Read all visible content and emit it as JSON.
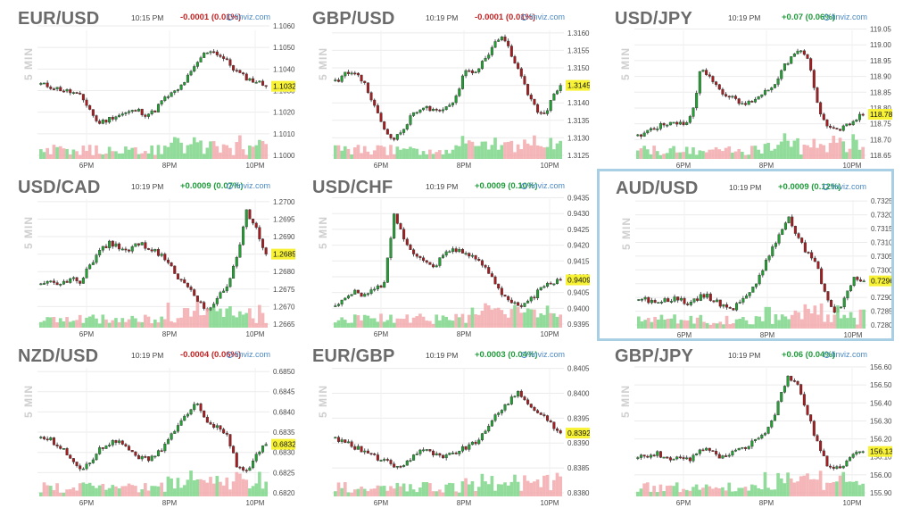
{
  "chart_data": [
    {
      "type": "candlestick",
      "title": "EUR/USD",
      "timeframe": "5 MIN",
      "time": "10:15 PM",
      "change": "-0.0001 (0.01%)",
      "direction": "neg",
      "source": "finviz.com",
      "last": "1.1032",
      "last_value": 1.1032,
      "yticks": [
        "1.1060",
        "1.1050",
        "1.1040",
        "1.1030",
        "1.1020",
        "1.1010",
        "1.1000"
      ],
      "ylim": [
        1.1,
        1.106
      ],
      "xticks": [
        "6PM",
        "8PM",
        "10PM"
      ],
      "points": [
        1.1033,
        1.1032,
        1.1031,
        1.103,
        1.1029,
        1.1027,
        1.1022,
        1.1015,
        1.1016,
        1.1018,
        1.1019,
        1.102,
        1.1021,
        1.1019,
        1.102,
        1.1025,
        1.1028,
        1.103,
        1.1035,
        1.104,
        1.1046,
        1.1049,
        1.1047,
        1.1044,
        1.104,
        1.1037,
        1.1035,
        1.1034,
        1.1032
      ]
    },
    {
      "type": "candlestick",
      "title": "GBP/USD",
      "timeframe": "5 MIN",
      "time": "10:19 PM",
      "change": "-0.0001 (0.01%)",
      "direction": "neg",
      "source": "finviz.com",
      "last": "1.3145",
      "last_value": 1.3145,
      "yticks": [
        "1.3160",
        "1.3155",
        "1.3150",
        "1.3145",
        "1.3140",
        "1.3135",
        "1.3130",
        "1.3125"
      ],
      "ylim": [
        1.3125,
        1.3162
      ],
      "xticks": [
        "6PM",
        "8PM",
        "10PM"
      ],
      "points": [
        1.3146,
        1.3148,
        1.3149,
        1.3147,
        1.3142,
        1.3136,
        1.3131,
        1.313,
        1.3133,
        1.3137,
        1.3139,
        1.3138,
        1.3137,
        1.3139,
        1.3142,
        1.315,
        1.3148,
        1.3152,
        1.3155,
        1.3159,
        1.3156,
        1.315,
        1.3144,
        1.3139,
        1.3136,
        1.3141,
        1.3145
      ]
    },
    {
      "type": "candlestick",
      "title": "USD/JPY",
      "timeframe": "5 MIN",
      "time": "10:19 PM",
      "change": "+0.07 (0.06%)",
      "direction": "pos",
      "source": "finviz.com",
      "last": "118.78",
      "last_value": 118.78,
      "yticks": [
        "119.05",
        "119.00",
        "118.95",
        "118.90",
        "118.85",
        "118.80",
        "118.75",
        "118.70",
        "118.65"
      ],
      "ylim": [
        118.65,
        119.06
      ],
      "xticks": [
        "6PM",
        "8PM",
        "10PM"
      ],
      "points": [
        118.71,
        118.73,
        118.74,
        118.75,
        118.76,
        118.75,
        118.77,
        118.93,
        118.9,
        118.86,
        118.84,
        118.82,
        118.81,
        118.83,
        118.85,
        118.87,
        118.92,
        118.96,
        118.98,
        118.95,
        118.8,
        118.75,
        118.73,
        118.74,
        118.76,
        118.78
      ]
    },
    {
      "type": "candlestick",
      "title": "USD/CAD",
      "timeframe": "5 MIN",
      "time": "10:19 PM",
      "change": "+0.0009 (0.07%)",
      "direction": "pos",
      "source": "finviz.com",
      "last": "1.2685",
      "last_value": 1.2685,
      "yticks": [
        "1.2700",
        "1.2695",
        "1.2690",
        "1.2685",
        "1.2680",
        "1.2675",
        "1.2670",
        "1.2665"
      ],
      "ylim": [
        1.2665,
        1.2702
      ],
      "xticks": [
        "6PM",
        "8PM",
        "10PM"
      ],
      "points": [
        1.2676,
        1.2677,
        1.2676,
        1.2678,
        1.2677,
        1.2682,
        1.2686,
        1.2688,
        1.2687,
        1.2686,
        1.2688,
        1.2687,
        1.2685,
        1.2683,
        1.2678,
        1.2676,
        1.2672,
        1.2669,
        1.2672,
        1.2676,
        1.2684,
        1.2697,
        1.2692,
        1.2685
      ]
    },
    {
      "type": "candlestick",
      "title": "USD/CHF",
      "timeframe": "5 MIN",
      "time": "10:19 PM",
      "change": "+0.0009 (0.10%)",
      "direction": "pos",
      "source": "finviz.com",
      "last": "0.9409",
      "last_value": 0.9409,
      "yticks": [
        "0.9435",
        "0.9430",
        "0.9425",
        "0.9420",
        "0.9415",
        "0.9410",
        "0.9405",
        "0.9400",
        "0.9395"
      ],
      "ylim": [
        0.9395,
        0.9436
      ],
      "xticks": [
        "6PM",
        "8PM",
        "10PM"
      ],
      "points": [
        0.9401,
        0.9403,
        0.9405,
        0.9404,
        0.9406,
        0.9408,
        0.943,
        0.9422,
        0.9418,
        0.9415,
        0.9413,
        0.9417,
        0.9419,
        0.9418,
        0.9416,
        0.9414,
        0.941,
        0.9405,
        0.9402,
        0.94,
        0.9403,
        0.9406,
        0.9408,
        0.9409
      ]
    },
    {
      "type": "candlestick",
      "title": "AUD/USD",
      "timeframe": "5 MIN",
      "time": "10:19 PM",
      "change": "+0.0009 (0.12%)",
      "direction": "pos",
      "source": "finviz.com",
      "last": "0.7296",
      "last_value": 0.7296,
      "highlighted": true,
      "yticks": [
        "0.7325",
        "0.7320",
        "0.7315",
        "0.7310",
        "0.7305",
        "0.7300",
        "0.7295",
        "0.7290",
        "0.7285",
        "0.7280"
      ],
      "ylim": [
        0.728,
        0.7327
      ],
      "xticks": [
        "6PM",
        "8PM",
        "10PM"
      ],
      "points": [
        0.729,
        0.7289,
        0.7288,
        0.7289,
        0.729,
        0.7288,
        0.7289,
        0.7291,
        0.7289,
        0.7287,
        0.7286,
        0.7289,
        0.7292,
        0.7299,
        0.7306,
        0.7313,
        0.7319,
        0.7311,
        0.7306,
        0.7301,
        0.729,
        0.7284,
        0.729,
        0.7297,
        0.7296
      ]
    },
    {
      "type": "candlestick",
      "title": "NZD/USD",
      "timeframe": "5 MIN",
      "time": "10:19 PM",
      "change": "-0.0004 (0.06%)",
      "direction": "neg",
      "source": "finviz.com",
      "last": "0.6832",
      "last_value": 0.6832,
      "yticks": [
        "0.6850",
        "0.6845",
        "0.6840",
        "0.6835",
        "0.6830",
        "0.6825",
        "0.6820"
      ],
      "ylim": [
        0.682,
        0.6852
      ],
      "xticks": [
        "6PM",
        "8PM",
        "10PM"
      ],
      "points": [
        0.6834,
        0.6833,
        0.6831,
        0.6829,
        0.6826,
        0.6827,
        0.6831,
        0.6832,
        0.6833,
        0.6831,
        0.6829,
        0.6828,
        0.683,
        0.6833,
        0.6837,
        0.684,
        0.6842,
        0.6838,
        0.6836,
        0.6834,
        0.6827,
        0.6825,
        0.6829,
        0.6832
      ]
    },
    {
      "type": "candlestick",
      "title": "EUR/GBP",
      "timeframe": "5 MIN",
      "time": "10:19 PM",
      "change": "+0.0003 (0.04%)",
      "direction": "pos",
      "source": "finviz.com",
      "last": "0.8392",
      "last_value": 0.8392,
      "yticks": [
        "0.8405",
        "0.8400",
        "0.8395",
        "0.8390",
        "0.8385",
        "0.8380"
      ],
      "ylim": [
        0.838,
        0.8406
      ],
      "xticks": [
        "6PM",
        "8PM",
        "10PM"
      ],
      "points": [
        0.8391,
        0.839,
        0.8389,
        0.8388,
        0.8387,
        0.8386,
        0.8385,
        0.8387,
        0.8389,
        0.8388,
        0.8387,
        0.8388,
        0.8389,
        0.839,
        0.8392,
        0.8396,
        0.8398,
        0.84,
        0.8398,
        0.8396,
        0.8394,
        0.8392
      ]
    },
    {
      "type": "candlestick",
      "title": "GBP/JPY",
      "timeframe": "5 MIN",
      "time": "10:19 PM",
      "change": "+0.06 (0.04%)",
      "direction": "pos",
      "source": "finviz.com",
      "last": "156.13",
      "last_value": 156.13,
      "yticks": [
        "156.60",
        "156.50",
        "156.40",
        "156.30",
        "156.20",
        "156.10",
        "156.00",
        "155.90"
      ],
      "ylim": [
        155.9,
        156.62
      ],
      "xticks": [
        "6PM",
        "8PM",
        "10PM"
      ],
      "points": [
        156.1,
        156.11,
        156.12,
        156.1,
        156.09,
        156.08,
        156.1,
        156.15,
        156.12,
        156.1,
        156.12,
        156.14,
        156.17,
        156.2,
        156.26,
        156.4,
        156.55,
        156.5,
        156.35,
        156.2,
        156.07,
        156.03,
        156.06,
        156.12,
        156.13
      ]
    }
  ],
  "theme": {
    "up": "#22a033",
    "down": "#a51d20",
    "up_volume": "#7fd68a",
    "down_volume": "#f2a9ab",
    "label_bg": "#f7f236",
    "axis_text": "#4a4a4a",
    "grid": "#ebebeb",
    "highlight_border": "#a9cfe4"
  },
  "icons": {
    "finviz_logo": "finviz-logo-icon"
  }
}
